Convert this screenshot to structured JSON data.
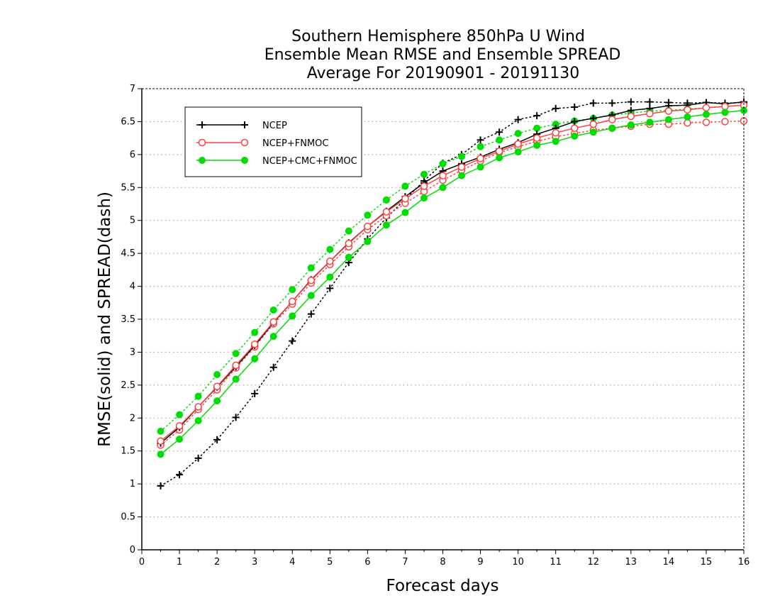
{
  "chart_data": {
    "type": "line",
    "title": [
      "Southern Hemisphere 850hPa U Wind",
      "Ensemble Mean RMSE and Ensemble SPREAD",
      "Average For 20190901 - 20191130"
    ],
    "xlabel": "Forecast days",
    "ylabel": "RMSE(solid) and SPREAD(dash)",
    "xlim": [
      0,
      16
    ],
    "ylim": [
      0,
      7
    ],
    "xticks": [
      "0",
      "1",
      "2",
      "3",
      "4",
      "5",
      "6",
      "7",
      "8",
      "9",
      "10",
      "11",
      "12",
      "13",
      "14",
      "15",
      "16"
    ],
    "yticks": [
      "0",
      "0.5",
      "1",
      "1.5",
      "2",
      "2.5",
      "3",
      "3.5",
      "4",
      "4.5",
      "5",
      "5.5",
      "6",
      "6.5",
      "7"
    ],
    "grid": "horizontal dotted",
    "legend_position": "top-left",
    "x": [
      0.5,
      1,
      1.5,
      2,
      2.5,
      3,
      3.5,
      4,
      4.5,
      5,
      5.5,
      6,
      6.5,
      7,
      7.5,
      8,
      8.5,
      9,
      9.5,
      10,
      10.5,
      11,
      11.5,
      12,
      12.5,
      13,
      13.5,
      14,
      14.5,
      15,
      15.5,
      16
    ],
    "series": [
      {
        "name": "NCEP",
        "color": "#000000",
        "marker": "plus",
        "rmse": [
          1.62,
          1.86,
          2.17,
          2.47,
          2.78,
          3.1,
          3.45,
          3.77,
          4.1,
          4.38,
          4.66,
          4.91,
          5.14,
          5.36,
          5.57,
          5.75,
          5.86,
          5.96,
          6.08,
          6.18,
          6.31,
          6.4,
          6.5,
          6.55,
          6.6,
          6.67,
          6.7,
          6.74,
          6.75,
          6.79,
          6.77,
          6.8
        ],
        "spread": [
          0.97,
          1.14,
          1.39,
          1.67,
          2.01,
          2.37,
          2.77,
          3.17,
          3.58,
          3.97,
          4.36,
          4.72,
          5.04,
          5.32,
          5.6,
          5.87,
          6.0,
          6.22,
          6.34,
          6.53,
          6.59,
          6.7,
          6.72,
          6.78,
          6.78,
          6.8,
          6.8,
          6.79,
          6.78,
          6.79,
          6.78,
          6.79
        ]
      },
      {
        "name": "NCEP+FNMOC",
        "color": "#ff4040",
        "marker": "open-circle",
        "rmse": [
          1.65,
          1.88,
          2.17,
          2.48,
          2.8,
          3.12,
          3.46,
          3.77,
          4.09,
          4.38,
          4.65,
          4.91,
          5.13,
          5.33,
          5.52,
          5.68,
          5.81,
          5.94,
          6.05,
          6.16,
          6.25,
          6.33,
          6.4,
          6.46,
          6.53,
          6.58,
          6.62,
          6.66,
          6.68,
          6.71,
          6.73,
          6.75
        ],
        "spread": [
          1.59,
          1.82,
          2.13,
          2.43,
          2.76,
          3.08,
          3.43,
          3.73,
          4.05,
          4.33,
          4.6,
          4.86,
          5.07,
          5.26,
          5.44,
          5.61,
          5.76,
          5.9,
          6.03,
          6.12,
          6.2,
          6.27,
          6.32,
          6.37,
          6.4,
          6.43,
          6.46,
          6.46,
          6.48,
          6.49,
          6.5,
          6.51
        ]
      },
      {
        "name": "NCEP+CMC+FNMOC",
        "color": "#00dd00",
        "marker": "filled-circle",
        "rmse": [
          1.45,
          1.68,
          1.96,
          2.26,
          2.59,
          2.9,
          3.24,
          3.55,
          3.86,
          4.14,
          4.44,
          4.68,
          4.93,
          5.12,
          5.34,
          5.5,
          5.68,
          5.81,
          5.95,
          6.04,
          6.14,
          6.2,
          6.28,
          6.34,
          6.4,
          6.45,
          6.49,
          6.53,
          6.57,
          6.61,
          6.64,
          6.67
        ],
        "spread": [
          1.8,
          2.05,
          2.33,
          2.66,
          2.98,
          3.3,
          3.64,
          3.95,
          4.28,
          4.56,
          4.84,
          5.08,
          5.31,
          5.52,
          5.7,
          5.86,
          5.97,
          6.12,
          6.22,
          6.32,
          6.4,
          6.46,
          6.51,
          6.55,
          6.6,
          6.63,
          6.66,
          6.67,
          6.69,
          6.71,
          6.73,
          6.75
        ]
      }
    ]
  }
}
